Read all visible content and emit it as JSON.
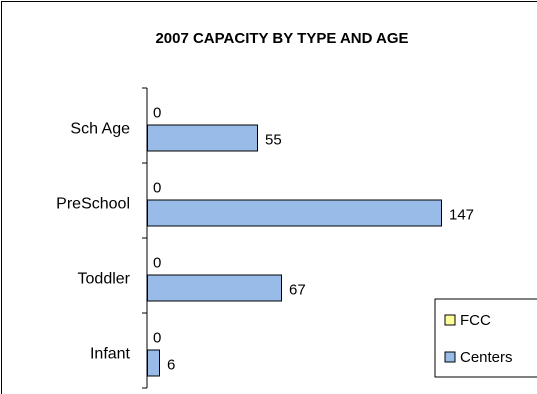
{
  "chart_data": {
    "type": "bar",
    "orientation": "horizontal",
    "title": "2007 CAPACITY BY TYPE AND AGE",
    "categories": [
      "Sch Age",
      "PreSchool",
      "Toddler",
      "Infant"
    ],
    "series": [
      {
        "name": "FCC",
        "values": [
          0,
          0,
          0,
          0
        ],
        "color": "#FFFF99"
      },
      {
        "name": "Centers",
        "values": [
          55,
          147,
          67,
          6
        ],
        "color": "#99BBE8"
      }
    ],
    "xlim": [
      0,
      180
    ],
    "grid": false,
    "legend": "bottom-right"
  }
}
